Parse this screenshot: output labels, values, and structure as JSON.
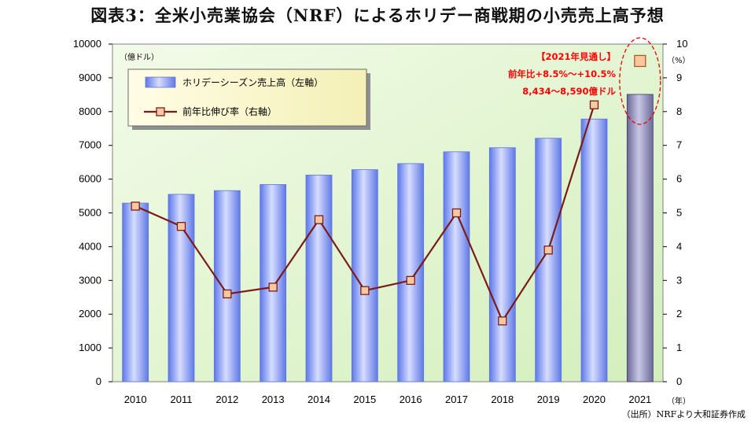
{
  "title": "図表3：全米小売業協会（NRF）によるホリデー商戦期の小売売上高予想",
  "source": "（出所）NRFより大和証券作成",
  "chart_data": {
    "type": "bar",
    "categories": [
      "2010",
      "2011",
      "2012",
      "2013",
      "2014",
      "2015",
      "2016",
      "2017",
      "2018",
      "2019",
      "2020",
      "2021"
    ],
    "series": [
      {
        "name": "ホリデーシーズン売上高（左軸）",
        "type": "bar",
        "axis": "left",
        "values": [
          5290,
          5550,
          5660,
          5840,
          6120,
          6280,
          6460,
          6810,
          6930,
          7210,
          7780,
          8510
        ],
        "color": "#7b93f0",
        "forecast_color": "#8b87b5"
      },
      {
        "name": "前年比伸び率（右軸）",
        "type": "line",
        "axis": "right",
        "values": [
          5.2,
          4.6,
          2.6,
          2.8,
          4.8,
          2.7,
          3.0,
          5.0,
          1.8,
          3.9,
          8.2,
          9.5
        ],
        "color": "#7a1b1b",
        "marker_fill": "#f8c9a0"
      }
    ],
    "y_left": {
      "min": 0,
      "max": 10000,
      "step": 1000,
      "unit": "（億ドル）"
    },
    "y_right": {
      "min": 0,
      "max": 10,
      "step": 1,
      "unit": "（%）",
      "top_label": "10"
    },
    "x_unit": "（年）",
    "legend_position": "top-left",
    "annotations": [
      "【2021年見通し】",
      "前年比+8.5%～+10.5%",
      "8,434～8,590億ドル"
    ],
    "grid": false
  }
}
